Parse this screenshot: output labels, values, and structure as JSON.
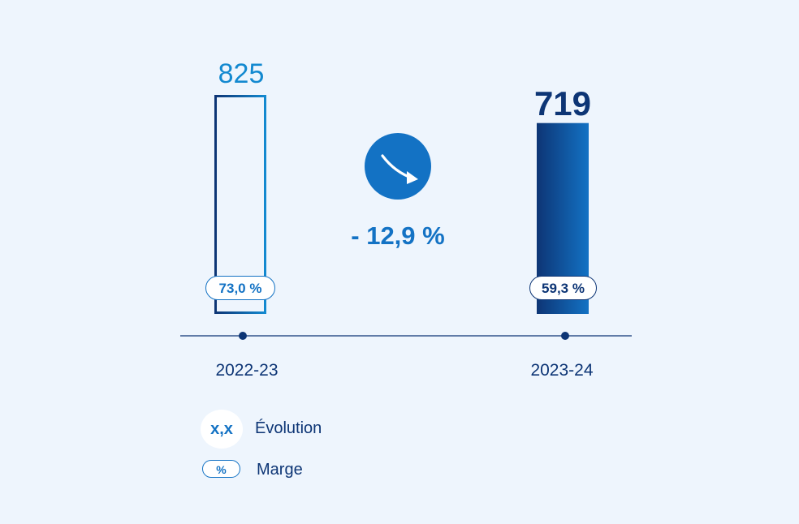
{
  "chart_data": {
    "type": "bar",
    "categories": [
      "2022-23",
      "2023-24"
    ],
    "values": [
      825,
      719
    ],
    "value_labels": [
      "825",
      "719"
    ],
    "margins": [
      "73,0 %",
      "59,3 %"
    ],
    "evolution": "- 12,9 %",
    "trend": "down",
    "ylim": [
      0,
      825
    ],
    "title": "",
    "xlabel": "",
    "ylabel": ""
  },
  "legend": {
    "evolution_badge": "x,x",
    "evolution_label": "Évolution",
    "margin_badge": "%",
    "margin_label": "Marge"
  },
  "icons": {
    "evolution": "arrow-down-right-icon"
  },
  "colors": {
    "background": "#eef5fd",
    "accent": "#1372c4",
    "light_blue": "#1389d0",
    "navy": "#0d3575"
  }
}
